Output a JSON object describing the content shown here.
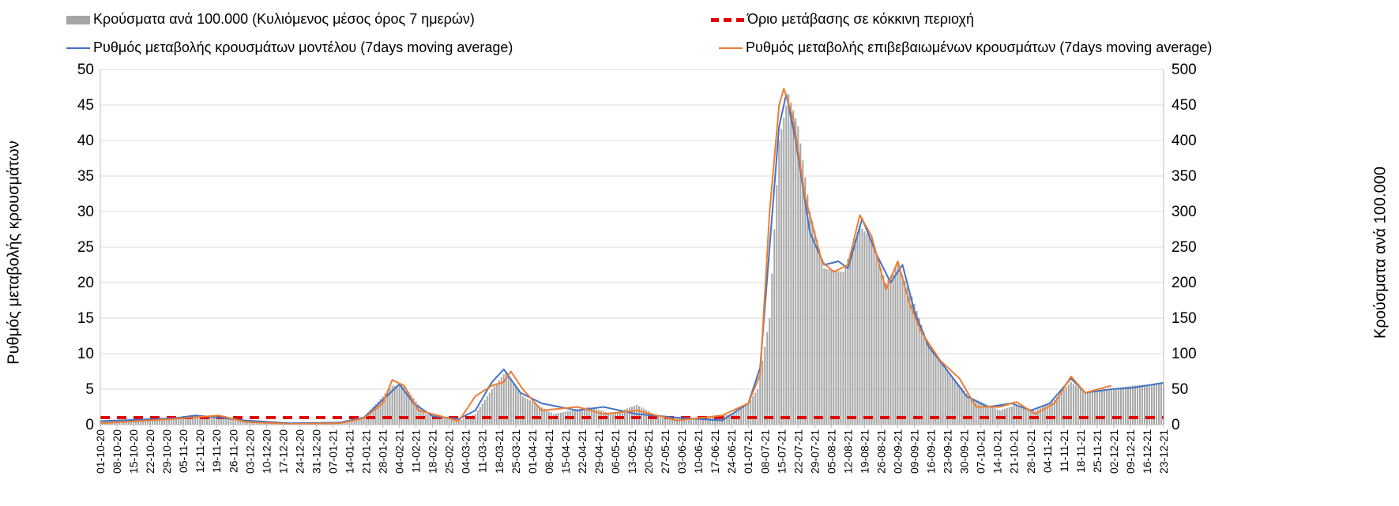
{
  "chart_data": {
    "type": "bar",
    "title": "",
    "legend": {
      "placement": "top",
      "bars": "Κρούσματα ανά 100.000 (Κυλιόμενος μέσος όρος 7 ημερών)",
      "threshold": "Όριο μετάβασης σε κόκκινη περιοχή",
      "model": "Ρυθμός μεταβολής κρουσμάτων μοντέλου (7days moving average)",
      "confirmed": "Ρυθμός μεταβολής επιβεβαιωμένων κρουσμάτων (7days moving average)"
    },
    "ylabel_left": "Ρυθμός μεταβολής κρουσμάτων",
    "ylabel_right": "Κρούσματα ανά 100.000",
    "ylim_left": [
      0,
      50
    ],
    "ylim_right": [
      0,
      500
    ],
    "yticks_left": [
      "0",
      "5",
      "10",
      "15",
      "20",
      "25",
      "30",
      "35",
      "40",
      "45",
      "50"
    ],
    "yticks_right": [
      "0",
      "50",
      "100",
      "150",
      "200",
      "250",
      "300",
      "350",
      "400",
      "450",
      "500"
    ],
    "grid": true,
    "colors": {
      "bars": "#a6a6a6",
      "threshold": "#e00000",
      "model": "#4472c4",
      "confirmed": "#ed7d31"
    },
    "x_start": "2020-10-01",
    "x_end": "2021-12-23",
    "xtick_labels": [
      "01-10-20",
      "08-10-20",
      "15-10-20",
      "22-10-20",
      "29-10-20",
      "05-11-20",
      "12-11-20",
      "19-11-20",
      "26-11-20",
      "03-12-20",
      "10-12-20",
      "17-12-20",
      "24-12-20",
      "31-12-20",
      "07-01-21",
      "14-01-21",
      "21-01-21",
      "28-01-21",
      "04-02-21",
      "11-02-21",
      "18-02-21",
      "25-02-21",
      "04-03-21",
      "11-03-21",
      "18-03-21",
      "25-03-21",
      "01-04-21",
      "08-04-21",
      "15-04-21",
      "22-04-21",
      "29-04-21",
      "06-05-21",
      "13-05-21",
      "20-05-21",
      "27-05-21",
      "03-06-21",
      "10-06-21",
      "17-06-21",
      "24-06-21",
      "01-07-21",
      "08-07-21",
      "15-07-21",
      "22-07-21",
      "29-07-21",
      "05-08-21",
      "12-08-21",
      "19-08-21",
      "26-08-21",
      "02-09-21",
      "09-09-21",
      "16-09-21",
      "23-09-21",
      "30-09-21",
      "07-10-21",
      "14-10-21",
      "21-10-21",
      "28-10-21",
      "04-11-21",
      "11-11-21",
      "18-11-21",
      "25-11-21",
      "02-12-21",
      "09-12-21",
      "16-12-21",
      "23-12-21"
    ],
    "threshold_value": 10,
    "bars_anchors": [
      [
        "2020-10-01",
        5
      ],
      [
        "2020-11-01",
        9
      ],
      [
        "2020-11-10",
        12
      ],
      [
        "2020-11-20",
        10
      ],
      [
        "2020-12-01",
        5
      ],
      [
        "2020-12-20",
        3
      ],
      [
        "2021-01-10",
        3
      ],
      [
        "2021-01-20",
        10
      ],
      [
        "2021-02-01",
        55
      ],
      [
        "2021-02-06",
        55
      ],
      [
        "2021-02-15",
        15
      ],
      [
        "2021-03-01",
        5
      ],
      [
        "2021-03-08",
        15
      ],
      [
        "2021-03-15",
        50
      ],
      [
        "2021-03-21",
        75
      ],
      [
        "2021-03-28",
        40
      ],
      [
        "2021-04-10",
        15
      ],
      [
        "2021-04-25",
        25
      ],
      [
        "2021-05-05",
        15
      ],
      [
        "2021-05-15",
        28
      ],
      [
        "2021-05-25",
        10
      ],
      [
        "2021-06-10",
        8
      ],
      [
        "2021-06-25",
        15
      ],
      [
        "2021-07-01",
        30
      ],
      [
        "2021-07-05",
        50
      ],
      [
        "2021-07-10",
        150
      ],
      [
        "2021-07-14",
        400
      ],
      [
        "2021-07-18",
        465
      ],
      [
        "2021-07-22",
        420
      ],
      [
        "2021-07-27",
        300
      ],
      [
        "2021-08-02",
        220
      ],
      [
        "2021-08-10",
        215
      ],
      [
        "2021-08-17",
        280
      ],
      [
        "2021-08-22",
        260
      ],
      [
        "2021-08-28",
        200
      ],
      [
        "2021-09-02",
        225
      ],
      [
        "2021-09-08",
        180
      ],
      [
        "2021-09-14",
        120
      ],
      [
        "2021-09-22",
        80
      ],
      [
        "2021-10-02",
        40
      ],
      [
        "2021-10-15",
        20
      ],
      [
        "2021-10-22",
        28
      ],
      [
        "2021-10-30",
        20
      ],
      [
        "2021-11-07",
        35
      ],
      [
        "2021-11-14",
        60
      ],
      [
        "2021-11-20",
        45
      ],
      [
        "2021-11-30",
        50
      ],
      [
        "2021-12-10",
        55
      ],
      [
        "2021-12-23",
        58
      ]
    ],
    "model_anchors": [
      [
        "2020-10-01",
        0.5
      ],
      [
        "2020-11-01",
        0.9
      ],
      [
        "2020-11-10",
        1.3
      ],
      [
        "2020-11-20",
        1.0
      ],
      [
        "2020-12-01",
        0.6
      ],
      [
        "2020-12-20",
        0.2
      ],
      [
        "2021-01-10",
        0.3
      ],
      [
        "2021-01-20",
        1.0
      ],
      [
        "2021-01-28",
        3.5
      ],
      [
        "2021-02-04",
        5.7
      ],
      [
        "2021-02-10",
        3.0
      ],
      [
        "2021-02-18",
        1.2
      ],
      [
        "2021-03-01",
        0.8
      ],
      [
        "2021-03-08",
        2.0
      ],
      [
        "2021-03-15",
        6.0
      ],
      [
        "2021-03-20",
        7.8
      ],
      [
        "2021-03-27",
        4.5
      ],
      [
        "2021-04-05",
        3.0
      ],
      [
        "2021-04-20",
        2.0
      ],
      [
        "2021-05-01",
        2.5
      ],
      [
        "2021-05-15",
        1.5
      ],
      [
        "2021-06-01",
        1.0
      ],
      [
        "2021-06-20",
        0.6
      ],
      [
        "2021-07-01",
        3.0
      ],
      [
        "2021-07-06",
        8.0
      ],
      [
        "2021-07-10",
        25.0
      ],
      [
        "2021-07-14",
        42.0
      ],
      [
        "2021-07-17",
        46.5
      ],
      [
        "2021-07-21",
        40.0
      ],
      [
        "2021-07-27",
        27.0
      ],
      [
        "2021-08-02",
        22.5
      ],
      [
        "2021-08-08",
        23.0
      ],
      [
        "2021-08-12",
        22.0
      ],
      [
        "2021-08-18",
        29.0
      ],
      [
        "2021-08-24",
        24.0
      ],
      [
        "2021-08-30",
        20.0
      ],
      [
        "2021-09-04",
        22.5
      ],
      [
        "2021-09-09",
        16.0
      ],
      [
        "2021-09-15",
        11.0
      ],
      [
        "2021-09-22",
        8.0
      ],
      [
        "2021-10-01",
        4.0
      ],
      [
        "2021-10-10",
        2.5
      ],
      [
        "2021-10-20",
        3.0
      ],
      [
        "2021-10-28",
        2.0
      ],
      [
        "2021-11-05",
        3.0
      ],
      [
        "2021-11-14",
        6.5
      ],
      [
        "2021-11-20",
        4.5
      ],
      [
        "2021-12-01",
        5.0
      ],
      [
        "2021-12-10",
        5.2
      ],
      [
        "2021-12-23",
        5.9
      ]
    ],
    "confirmed_anchors": [
      [
        "2020-10-01",
        0.2
      ],
      [
        "2020-11-01",
        0.8
      ],
      [
        "2020-11-12",
        1.1
      ],
      [
        "2020-11-20",
        1.3
      ],
      [
        "2020-12-01",
        0.4
      ],
      [
        "2020-12-20",
        0.1
      ],
      [
        "2021-01-10",
        0.2
      ],
      [
        "2021-01-20",
        0.9
      ],
      [
        "2021-01-28",
        3.0
      ],
      [
        "2021-02-01",
        6.3
      ],
      [
        "2021-02-06",
        5.5
      ],
      [
        "2021-02-12",
        2.0
      ],
      [
        "2021-02-18",
        1.5
      ],
      [
        "2021-03-01",
        0.5
      ],
      [
        "2021-03-08",
        4.0
      ],
      [
        "2021-03-15",
        5.5
      ],
      [
        "2021-03-20",
        6.0
      ],
      [
        "2021-03-23",
        7.5
      ],
      [
        "2021-03-28",
        5.0
      ],
      [
        "2021-04-05",
        2.0
      ],
      [
        "2021-04-20",
        2.5
      ],
      [
        "2021-05-01",
        1.5
      ],
      [
        "2021-05-15",
        2.0
      ],
      [
        "2021-06-01",
        0.6
      ],
      [
        "2021-06-20",
        1.3
      ],
      [
        "2021-07-01",
        3.0
      ],
      [
        "2021-07-06",
        7.0
      ],
      [
        "2021-07-10",
        30.0
      ],
      [
        "2021-07-14",
        45.0
      ],
      [
        "2021-07-16",
        47.3
      ],
      [
        "2021-07-20",
        43.0
      ],
      [
        "2021-07-25",
        32.0
      ],
      [
        "2021-08-01",
        23.0
      ],
      [
        "2021-08-06",
        21.5
      ],
      [
        "2021-08-12",
        22.5
      ],
      [
        "2021-08-17",
        29.5
      ],
      [
        "2021-08-22",
        26.5
      ],
      [
        "2021-08-28",
        19.0
      ],
      [
        "2021-09-02",
        23.0
      ],
      [
        "2021-09-07",
        17.0
      ],
      [
        "2021-09-12",
        13.0
      ],
      [
        "2021-09-20",
        9.0
      ],
      [
        "2021-09-28",
        6.5
      ],
      [
        "2021-10-05",
        2.5
      ],
      [
        "2021-10-15",
        2.5
      ],
      [
        "2021-10-22",
        3.2
      ],
      [
        "2021-10-30",
        1.5
      ],
      [
        "2021-11-07",
        3.0
      ],
      [
        "2021-11-14",
        6.8
      ],
      [
        "2021-11-20",
        4.5
      ],
      [
        "2021-12-01",
        5.5
      ]
    ]
  }
}
